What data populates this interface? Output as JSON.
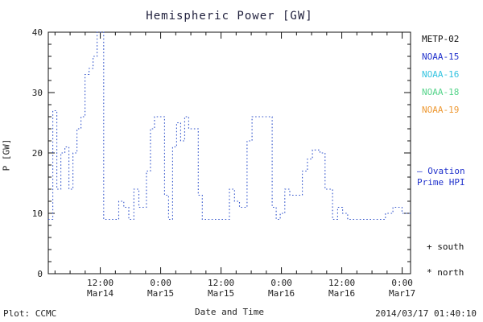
{
  "title": "Hemispheric Power [GW]",
  "axes": {
    "ylabel": "P [GW]",
    "xlabel": "Date and Time"
  },
  "footer": {
    "left": "Plot: CCMC",
    "right": "2014/03/17 01:40:10"
  },
  "colors": {
    "line": "#3355cc",
    "axis": "#111111",
    "title": "#1d1d3a"
  },
  "legend": {
    "satellites": [
      {
        "label": "METP-02",
        "color": "#111111"
      },
      {
        "label": "NOAA-15",
        "color": "#2233cc"
      },
      {
        "label": "NOAA-16",
        "color": "#33c3e0"
      },
      {
        "label": "NOAA-18",
        "color": "#55d48a"
      },
      {
        "label": "NOAA-19",
        "color": "#ee9933"
      }
    ],
    "ovation_lines": [
      "— Ovation",
      "Prime HPI"
    ],
    "ovation_color": "#2233cc",
    "south_label": "+ south",
    "north_label": "* north"
  },
  "chart_data": {
    "type": "line",
    "style": "dotted-step",
    "title": "Hemispheric Power [GW]",
    "xlabel": "Date and Time",
    "ylabel": "P [GW]",
    "ylim": [
      0,
      40
    ],
    "xlim_hours": [
      0,
      72
    ],
    "grid": false,
    "legend_position": "right",
    "y_ticks": [
      0,
      10,
      20,
      30,
      40
    ],
    "y_minor_step": 2,
    "x_minor_step": 3,
    "x_ticks": [
      {
        "pos": 10.333,
        "time": "12:00",
        "date": "Mar14"
      },
      {
        "pos": 22.333,
        "time": "0:00",
        "date": "Mar15"
      },
      {
        "pos": 34.333,
        "time": "12:00",
        "date": "Mar15"
      },
      {
        "pos": 46.333,
        "time": "0:00",
        "date": "Mar16"
      },
      {
        "pos": 58.333,
        "time": "12:00",
        "date": "Mar16"
      },
      {
        "pos": 70.333,
        "time": "0:00",
        "date": "Mar17"
      }
    ],
    "series": [
      {
        "name": "Ovation Prime HPI (NOAA-15)",
        "color": "#3355cc",
        "x": [
          0,
          0.9,
          1.7,
          2.5,
          3.3,
          4.1,
          4.9,
          5.7,
          6.5,
          7.3,
          8.1,
          8.9,
          9.7,
          11.0,
          14.0,
          15.0,
          16.0,
          17.0,
          18.0,
          19.5,
          20.3,
          21.1,
          22.3,
          23.1,
          23.9,
          24.7,
          25.5,
          26.3,
          27.1,
          27.9,
          29.0,
          29.8,
          30.6,
          35.0,
          36.0,
          37.0,
          38.0,
          39.5,
          40.5,
          42.0,
          44.5,
          45.3,
          46.1,
          47.0,
          48.0,
          49.5,
          50.5,
          51.5,
          52.5,
          54.0,
          55.0,
          56.5,
          57.5,
          58.5,
          59.5,
          66.0,
          67.0,
          68.5,
          70.3,
          72.0
        ],
        "y": [
          9,
          27,
          14,
          20,
          21,
          14,
          20,
          24,
          26,
          33,
          34,
          36,
          40,
          9,
          12,
          11,
          9,
          14,
          11,
          17,
          24,
          26,
          26,
          13,
          9,
          21,
          25,
          22,
          26,
          24,
          24,
          13,
          9,
          9,
          14,
          12,
          11,
          22,
          26,
          26,
          11,
          9,
          10,
          14,
          13,
          13,
          17,
          19,
          20.5,
          20,
          14,
          9,
          11,
          10,
          9,
          9,
          10,
          11,
          10,
          10
        ]
      }
    ]
  }
}
